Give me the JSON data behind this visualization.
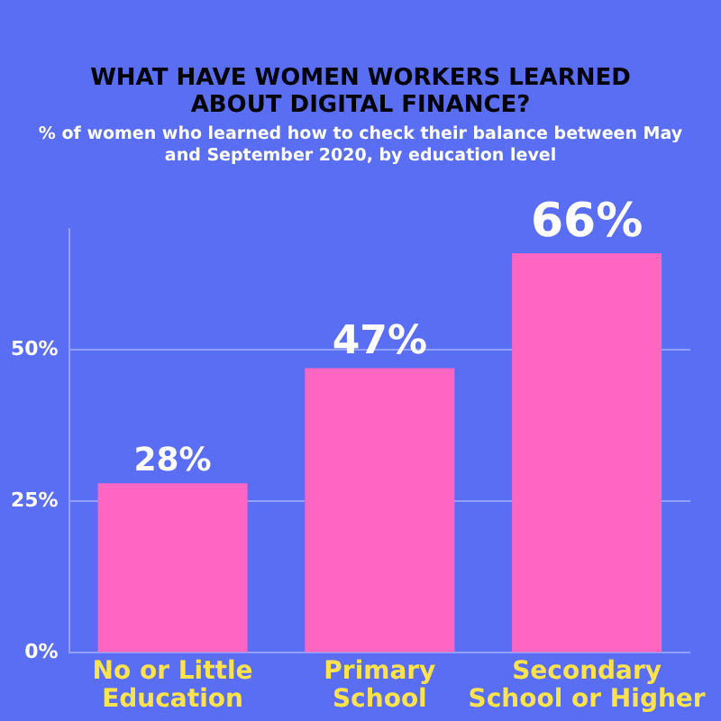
{
  "chart_data": {
    "type": "bar",
    "title": "WHAT HAVE WOMEN WORKERS LEARNED ABOUT DIGITAL FINANCE?",
    "subtitle": "% of women who learned how to check their balance between May and September 2020, by education level",
    "categories": [
      "No or Little Education",
      "Primary School",
      "Secondary School or Higher"
    ],
    "values": [
      28,
      47,
      66
    ],
    "color": "#ff66c4",
    "value_labels": [
      "28%",
      "47%",
      "66%"
    ],
    "ylim": [
      0,
      70
    ],
    "yticks": [
      {
        "value": 0,
        "label": "0%"
      },
      {
        "value": 25,
        "label": "25%"
      },
      {
        "value": 50,
        "label": "50%"
      }
    ],
    "grid": "y"
  }
}
